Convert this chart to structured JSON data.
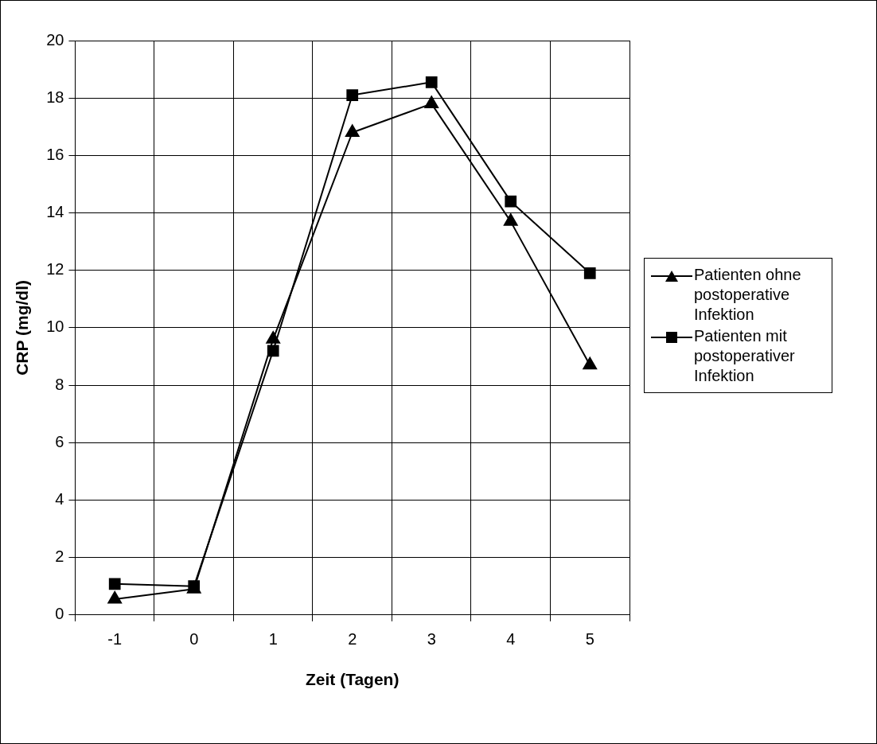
{
  "chart_data": {
    "type": "line",
    "xlabel": "Zeit (Tagen)",
    "ylabel": "CRP (mg/dl)",
    "categories": [
      "-1",
      "0",
      "1",
      "2",
      "3",
      "4",
      "5"
    ],
    "series": [
      {
        "name": "Patienten ohne postoperative Infektion",
        "color": "#000000",
        "marker": "triangle",
        "values": [
          0.55,
          0.9,
          9.6,
          16.8,
          17.8,
          13.7,
          8.7
        ]
      },
      {
        "name": "Patienten mit postoperativer Infektion",
        "color": "#000000",
        "marker": "square",
        "values": [
          1.08,
          1.0,
          9.2,
          18.1,
          18.55,
          14.4,
          11.9
        ]
      }
    ],
    "ylim": [
      0,
      20
    ],
    "yticks": [
      0,
      2,
      4,
      6,
      8,
      10,
      12,
      14,
      16,
      18,
      20
    ],
    "grid": true,
    "legend": "right",
    "line_style": "solid"
  }
}
